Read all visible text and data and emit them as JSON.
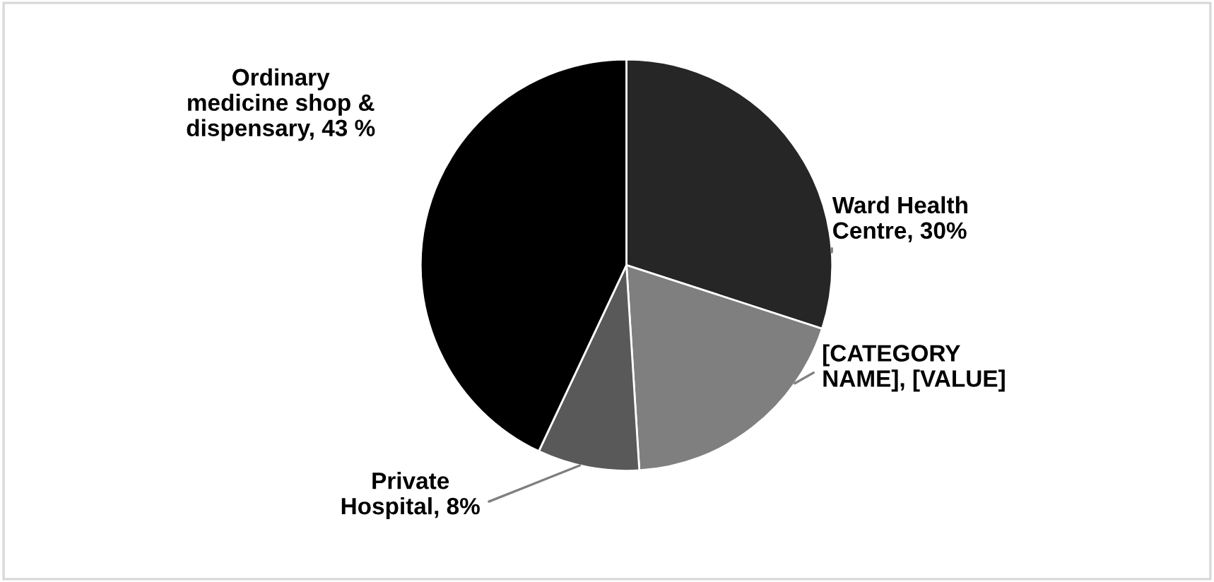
{
  "chart_data": {
    "type": "pie",
    "categories": [
      "Ward Health Centre",
      "[CATEGORY NAME]",
      "Private Hospital",
      "Ordinary medicine shop & dispensary"
    ],
    "values": [
      30,
      19,
      8,
      43
    ],
    "colors": [
      "#262626",
      "#7f7f7f",
      "#595959",
      "#000000"
    ],
    "value_labels": [
      "30%",
      "[VALUE]",
      "8%",
      "43 %"
    ],
    "legend": false
  }
}
